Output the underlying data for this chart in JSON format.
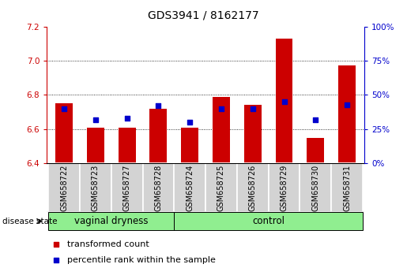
{
  "title": "GDS3941 / 8162177",
  "samples": [
    "GSM658722",
    "GSM658723",
    "GSM658727",
    "GSM658728",
    "GSM658724",
    "GSM658725",
    "GSM658726",
    "GSM658729",
    "GSM658730",
    "GSM658731"
  ],
  "transformed_count": [
    6.75,
    6.61,
    6.61,
    6.72,
    6.61,
    6.79,
    6.74,
    7.13,
    6.55,
    6.97
  ],
  "percentile_rank": [
    40,
    32,
    33,
    42,
    30,
    40,
    40,
    45,
    32,
    43
  ],
  "groups": [
    {
      "label": "vaginal dryness",
      "start": 0,
      "end": 4,
      "color": "#90EE90"
    },
    {
      "label": "control",
      "start": 4,
      "end": 10,
      "color": "#90EE90"
    }
  ],
  "bar_color": "#cc0000",
  "dot_color": "#0000cc",
  "ylim_left": [
    6.4,
    7.2
  ],
  "ylim_right": [
    0,
    100
  ],
  "yticks_left": [
    6.4,
    6.6,
    6.8,
    7.0,
    7.2
  ],
  "yticks_right": [
    0,
    25,
    50,
    75,
    100
  ],
  "grid_values": [
    6.6,
    6.8,
    7.0
  ],
  "bar_width": 0.55,
  "disease_state_label": "disease state",
  "legend_items": [
    {
      "label": "transformed count",
      "color": "#cc0000"
    },
    {
      "label": "percentile rank within the sample",
      "color": "#0000cc"
    }
  ],
  "label_area_color": "#d3d3d3",
  "title_fontsize": 10,
  "tick_fontsize": 7.5,
  "sample_fontsize": 7,
  "group_fontsize": 8.5,
  "legend_fontsize": 8,
  "disease_fontsize": 7.5
}
